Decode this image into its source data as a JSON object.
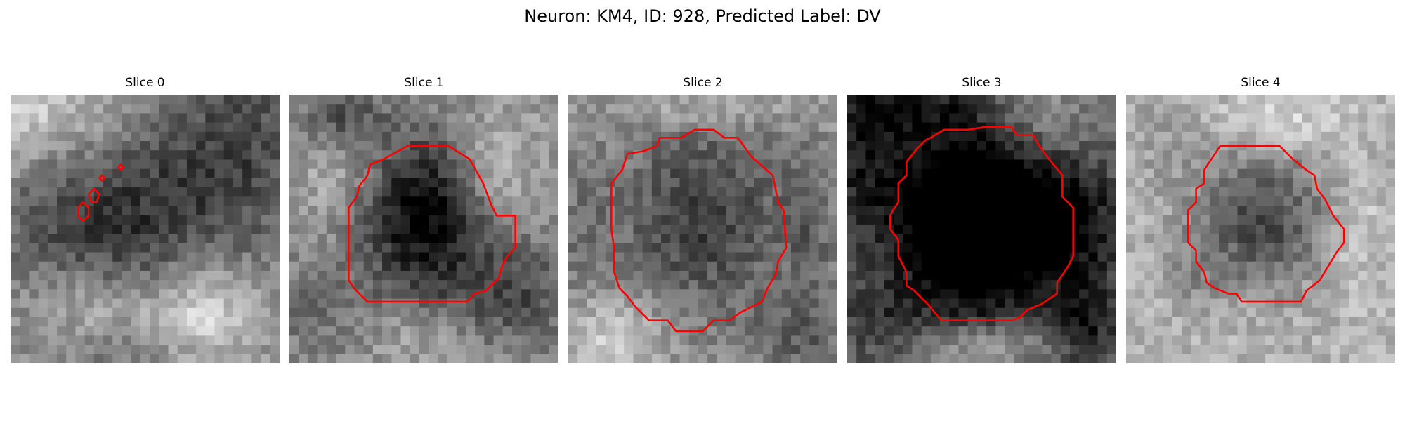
{
  "figure": {
    "title": "Neuron: KM4, ID: 928, Predicted Label: DV"
  },
  "panels": [
    {
      "title": "Slice 0",
      "seed": 11,
      "bg": 140,
      "spots": [
        [
          0.05,
          0.05,
          0.35,
          0.32,
          70
        ],
        [
          0.4,
          0.45,
          0.35,
          0.3,
          -90
        ],
        [
          0.85,
          0.2,
          0.3,
          0.35,
          -70
        ],
        [
          0.7,
          0.85,
          0.22,
          0.2,
          90
        ],
        [
          0.1,
          0.4,
          0.15,
          0.2,
          -30
        ],
        [
          0.3,
          0.8,
          0.2,
          0.15,
          40
        ],
        [
          0.55,
          0.95,
          0.3,
          0.1,
          -40
        ]
      ]
    },
    {
      "title": "Slice 1",
      "seed": 23,
      "bg": 150,
      "spots": [
        [
          0.5,
          0.45,
          0.26,
          0.3,
          -150
        ],
        [
          0.75,
          0.3,
          0.15,
          0.2,
          60
        ],
        [
          0.2,
          0.3,
          0.15,
          0.25,
          40
        ],
        [
          0.2,
          0.08,
          0.15,
          0.12,
          -80
        ],
        [
          0.85,
          0.75,
          0.25,
          0.2,
          -70
        ],
        [
          0.1,
          0.8,
          0.18,
          0.2,
          -40
        ],
        [
          0.5,
          0.9,
          0.2,
          0.1,
          30
        ]
      ]
    },
    {
      "title": "Slice 2",
      "seed": 37,
      "bg": 150,
      "spots": [
        [
          0.5,
          0.45,
          0.32,
          0.36,
          -90
        ],
        [
          0.9,
          0.5,
          0.1,
          0.3,
          -40
        ],
        [
          0.05,
          0.5,
          0.1,
          0.3,
          -30
        ],
        [
          0.85,
          0.9,
          0.2,
          0.15,
          -50
        ],
        [
          0.15,
          0.9,
          0.2,
          0.15,
          60
        ],
        [
          0.5,
          0.05,
          0.3,
          0.08,
          40
        ]
      ]
    },
    {
      "title": "Slice 3",
      "seed": 53,
      "bg": 115,
      "spots": [
        [
          0.5,
          0.46,
          0.33,
          0.35,
          -230
        ],
        [
          0.05,
          0.2,
          0.15,
          0.3,
          -70
        ],
        [
          0.85,
          0.45,
          0.2,
          0.2,
          -60
        ],
        [
          0.25,
          0.05,
          0.25,
          0.1,
          -60
        ],
        [
          0.9,
          0.85,
          0.12,
          0.2,
          -80
        ],
        [
          0.1,
          0.85,
          0.2,
          0.15,
          -50
        ],
        [
          0.7,
          0.1,
          0.2,
          0.2,
          60
        ],
        [
          0.5,
          0.93,
          0.25,
          0.08,
          70
        ]
      ]
    },
    {
      "title": "Slice 4",
      "seed": 71,
      "bg": 180,
      "spots": [
        [
          0.5,
          0.47,
          0.25,
          0.25,
          -110
        ],
        [
          0.85,
          0.5,
          0.1,
          0.2,
          30
        ],
        [
          0.25,
          0.65,
          0.1,
          0.15,
          -30
        ],
        [
          0.55,
          0.1,
          0.25,
          0.1,
          40
        ],
        [
          0.15,
          0.15,
          0.2,
          0.2,
          -20
        ]
      ]
    }
  ],
  "contours": [
    [
      [
        [
          0.27,
          0.47
        ],
        [
          0.25,
          0.45
        ],
        [
          0.25,
          0.42
        ],
        [
          0.27,
          0.4
        ],
        [
          0.29,
          0.42
        ],
        [
          0.29,
          0.45
        ]
      ],
      [
        [
          0.3,
          0.4
        ],
        [
          0.29,
          0.37
        ],
        [
          0.31,
          0.35
        ],
        [
          0.33,
          0.37
        ],
        [
          0.32,
          0.4
        ]
      ],
      [
        [
          0.33,
          0.31
        ],
        [
          0.34,
          0.3
        ],
        [
          0.35,
          0.31
        ],
        [
          0.34,
          0.32
        ]
      ],
      [
        [
          0.4,
          0.27
        ],
        [
          0.41,
          0.26
        ],
        [
          0.42,
          0.27
        ],
        [
          0.41,
          0.28
        ]
      ]
    ],
    [
      [
        [
          0.44,
          0.19
        ],
        [
          0.59,
          0.19
        ],
        [
          0.67,
          0.24
        ],
        [
          0.72,
          0.33
        ],
        [
          0.75,
          0.41
        ],
        [
          0.77,
          0.45
        ],
        [
          0.84,
          0.45
        ],
        [
          0.84,
          0.57
        ],
        [
          0.81,
          0.6
        ],
        [
          0.79,
          0.64
        ],
        [
          0.78,
          0.68
        ],
        [
          0.76,
          0.7
        ],
        [
          0.73,
          0.73
        ],
        [
          0.69,
          0.74
        ],
        [
          0.66,
          0.77
        ],
        [
          0.62,
          0.77
        ],
        [
          0.29,
          0.77
        ],
        [
          0.24,
          0.72
        ],
        [
          0.22,
          0.69
        ],
        [
          0.22,
          0.42
        ],
        [
          0.25,
          0.38
        ],
        [
          0.26,
          0.34
        ],
        [
          0.29,
          0.3
        ],
        [
          0.3,
          0.26
        ],
        [
          0.35,
          0.24
        ]
      ],
      [
        [
          0.6,
          0.77
        ],
        [
          0.6,
          0.77
        ]
      ]
    ],
    [
      [
        [
          0.42,
          0.16
        ],
        [
          0.47,
          0.13
        ],
        [
          0.54,
          0.13
        ],
        [
          0.58,
          0.16
        ],
        [
          0.63,
          0.16
        ],
        [
          0.68,
          0.23
        ],
        [
          0.76,
          0.3
        ],
        [
          0.78,
          0.4
        ],
        [
          0.8,
          0.43
        ],
        [
          0.81,
          0.57
        ],
        [
          0.78,
          0.62
        ],
        [
          0.77,
          0.67
        ],
        [
          0.74,
          0.72
        ],
        [
          0.72,
          0.77
        ],
        [
          0.64,
          0.81
        ],
        [
          0.6,
          0.84
        ],
        [
          0.54,
          0.84
        ],
        [
          0.5,
          0.88
        ],
        [
          0.4,
          0.88
        ],
        [
          0.37,
          0.84
        ],
        [
          0.3,
          0.84
        ],
        [
          0.25,
          0.79
        ],
        [
          0.22,
          0.75
        ],
        [
          0.19,
          0.72
        ],
        [
          0.17,
          0.66
        ],
        [
          0.17,
          0.57
        ],
        [
          0.16,
          0.5
        ],
        [
          0.16,
          0.33
        ],
        [
          0.2,
          0.28
        ],
        [
          0.22,
          0.22
        ],
        [
          0.28,
          0.21
        ],
        [
          0.33,
          0.19
        ],
        [
          0.34,
          0.16
        ]
      ]
    ],
    [
      [
        [
          0.31,
          0.16
        ],
        [
          0.36,
          0.13
        ],
        [
          0.45,
          0.13
        ],
        [
          0.51,
          0.12
        ],
        [
          0.61,
          0.12
        ],
        [
          0.63,
          0.15
        ],
        [
          0.69,
          0.15
        ],
        [
          0.72,
          0.2
        ],
        [
          0.75,
          0.24
        ],
        [
          0.8,
          0.3
        ],
        [
          0.8,
          0.38
        ],
        [
          0.84,
          0.42
        ],
        [
          0.84,
          0.6
        ],
        [
          0.82,
          0.64
        ],
        [
          0.8,
          0.67
        ],
        [
          0.78,
          0.7
        ],
        [
          0.78,
          0.74
        ],
        [
          0.72,
          0.78
        ],
        [
          0.67,
          0.8
        ],
        [
          0.64,
          0.83
        ],
        [
          0.61,
          0.84
        ],
        [
          0.55,
          0.84
        ],
        [
          0.52,
          0.84
        ],
        [
          0.35,
          0.84
        ],
        [
          0.3,
          0.78
        ],
        [
          0.25,
          0.73
        ],
        [
          0.22,
          0.71
        ],
        [
          0.22,
          0.66
        ],
        [
          0.2,
          0.62
        ],
        [
          0.19,
          0.6
        ],
        [
          0.19,
          0.54
        ],
        [
          0.16,
          0.5
        ],
        [
          0.16,
          0.45
        ],
        [
          0.17,
          0.43
        ],
        [
          0.19,
          0.4
        ],
        [
          0.19,
          0.33
        ],
        [
          0.22,
          0.3
        ],
        [
          0.22,
          0.25
        ],
        [
          0.26,
          0.2
        ],
        [
          0.29,
          0.17
        ]
      ]
    ],
    [
      [
        [
          0.35,
          0.19
        ],
        [
          0.42,
          0.19
        ],
        [
          0.57,
          0.19
        ],
        [
          0.62,
          0.24
        ],
        [
          0.67,
          0.28
        ],
        [
          0.7,
          0.3
        ],
        [
          0.71,
          0.35
        ],
        [
          0.74,
          0.39
        ],
        [
          0.77,
          0.45
        ],
        [
          0.81,
          0.5
        ],
        [
          0.81,
          0.55
        ],
        [
          0.78,
          0.59
        ],
        [
          0.75,
          0.64
        ],
        [
          0.72,
          0.69
        ],
        [
          0.67,
          0.73
        ],
        [
          0.65,
          0.77
        ],
        [
          0.59,
          0.77
        ],
        [
          0.43,
          0.77
        ],
        [
          0.41,
          0.74
        ],
        [
          0.38,
          0.74
        ],
        [
          0.33,
          0.72
        ],
        [
          0.3,
          0.7
        ],
        [
          0.29,
          0.66
        ],
        [
          0.26,
          0.62
        ],
        [
          0.26,
          0.58
        ],
        [
          0.23,
          0.55
        ],
        [
          0.23,
          0.43
        ],
        [
          0.26,
          0.4
        ],
        [
          0.26,
          0.35
        ],
        [
          0.29,
          0.33
        ],
        [
          0.29,
          0.28
        ]
      ]
    ]
  ],
  "colors": {
    "contour": "#ff0000"
  }
}
